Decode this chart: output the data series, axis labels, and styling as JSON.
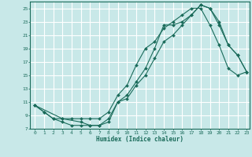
{
  "xlabel": "Humidex (Indice chaleur)",
  "bg_color": "#c8e8e8",
  "grid_color": "#ffffff",
  "line_color": "#1a6b5a",
  "xlim": [
    -0.5,
    23.3
  ],
  "ylim": [
    7,
    26
  ],
  "xticks": [
    0,
    1,
    2,
    3,
    4,
    5,
    6,
    7,
    8,
    9,
    10,
    11,
    12,
    13,
    14,
    15,
    16,
    17,
    18,
    19,
    20,
    21,
    22,
    23
  ],
  "yticks": [
    7,
    9,
    11,
    13,
    15,
    17,
    19,
    21,
    23,
    25
  ],
  "line1_x": [
    0,
    1,
    2,
    3,
    4,
    5,
    6,
    7,
    8,
    9,
    10,
    11,
    12,
    13,
    14,
    15,
    16,
    17,
    18,
    19,
    20,
    21,
    22,
    23
  ],
  "line1_y": [
    10.5,
    9.5,
    8.5,
    8,
    7.5,
    7.5,
    7.5,
    7.5,
    8,
    11,
    12,
    14,
    16,
    19,
    22.5,
    22.5,
    23,
    24,
    25.5,
    25,
    23,
    19.5,
    18,
    15.5
  ],
  "line2_x": [
    0,
    1,
    2,
    3,
    4,
    5,
    6,
    7,
    8,
    9,
    10,
    11,
    12,
    13,
    14,
    15,
    16,
    17,
    18,
    19,
    20,
    21,
    22,
    23
  ],
  "line2_y": [
    10.5,
    9.5,
    8.5,
    8.5,
    8.5,
    8.5,
    8.5,
    8.5,
    9.5,
    12,
    13.5,
    16.5,
    19,
    20,
    22,
    23,
    24,
    25,
    25,
    22.5,
    19.5,
    16,
    15,
    15.5
  ],
  "line3_x": [
    0,
    3,
    5,
    6,
    7,
    8,
    9,
    10,
    11,
    12,
    13,
    14,
    15,
    16,
    17,
    18,
    19,
    20,
    21,
    22,
    23
  ],
  "line3_y": [
    10.5,
    8.5,
    8,
    7.5,
    7.5,
    8.5,
    11,
    11.5,
    13.5,
    15,
    17.5,
    20,
    21,
    22.5,
    24,
    25.5,
    25,
    22.5,
    19.5,
    18,
    15.5
  ]
}
